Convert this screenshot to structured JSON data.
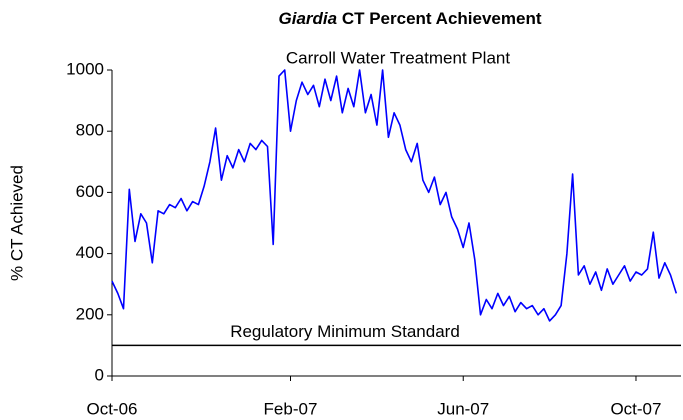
{
  "chart_data": {
    "type": "line",
    "title": {
      "italic": "Giardia",
      "text": "CT Percent Achievement"
    },
    "subtitle": "Carroll Water Treatment Plant",
    "ylabel": "% CT Achieved",
    "categories": [
      "Oct-06",
      null,
      null,
      null,
      null,
      null,
      null,
      null,
      null,
      null,
      null,
      null,
      null,
      null,
      null,
      null,
      null,
      null,
      null,
      null,
      null,
      null,
      null,
      null,
      null,
      null,
      null,
      null,
      null,
      null,
      null,
      "Feb-07",
      null,
      null,
      null,
      null,
      null,
      null,
      null,
      null,
      null,
      null,
      null,
      null,
      null,
      null,
      null,
      null,
      null,
      null,
      null,
      null,
      null,
      null,
      null,
      null,
      null,
      null,
      null,
      null,
      null,
      "Jun-07",
      null,
      null,
      null,
      null,
      null,
      null,
      null,
      null,
      null,
      null,
      null,
      null,
      null,
      null,
      null,
      null,
      null,
      null,
      null,
      null,
      null,
      null,
      null,
      null,
      null,
      null,
      null,
      null,
      null,
      "Oct-07",
      null,
      null,
      null,
      null,
      null,
      null,
      null
    ],
    "values": [
      310,
      270,
      220,
      610,
      440,
      530,
      500,
      370,
      540,
      530,
      560,
      550,
      580,
      540,
      570,
      560,
      620,
      700,
      810,
      640,
      720,
      680,
      740,
      700,
      760,
      740,
      770,
      750,
      430,
      980,
      1000,
      800,
      900,
      960,
      920,
      950,
      880,
      970,
      900,
      980,
      860,
      940,
      880,
      1000,
      860,
      920,
      820,
      1000,
      780,
      860,
      820,
      740,
      700,
      760,
      640,
      600,
      650,
      560,
      600,
      520,
      480,
      420,
      500,
      380,
      200,
      250,
      220,
      270,
      230,
      260,
      210,
      240,
      220,
      230,
      200,
      220,
      180,
      200,
      230,
      400,
      660,
      330,
      360,
      300,
      340,
      280,
      350,
      300,
      330,
      360,
      310,
      340,
      330,
      350,
      470,
      320,
      370,
      330,
      270
    ],
    "color": "#0000ff",
    "reference": {
      "value": 100,
      "label": "Regulatory Minimum Standard",
      "color": "#000000"
    },
    "ylim": [
      0,
      1000
    ],
    "yticks": [
      0,
      200,
      400,
      600,
      800,
      1000
    ]
  }
}
